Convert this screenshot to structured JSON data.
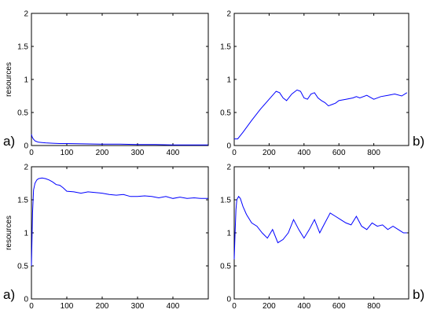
{
  "chart_data": [
    {
      "type": "line",
      "panel": "a)",
      "ylabel": "resources",
      "xlim": [
        0,
        500
      ],
      "ylim": [
        0,
        2
      ],
      "xticks": [
        0,
        100,
        200,
        300,
        400
      ],
      "yticks": [
        0,
        0.5,
        1,
        1.5,
        2
      ],
      "series_color": "#0000ff",
      "series": [
        {
          "x": [
            0,
            2,
            5,
            10,
            15,
            20,
            30,
            40,
            60,
            80,
            100,
            150,
            200,
            250,
            300,
            350,
            400,
            450,
            499
          ],
          "y": [
            0.17,
            0.13,
            0.1,
            0.07,
            0.06,
            0.05,
            0.045,
            0.04,
            0.035,
            0.03,
            0.03,
            0.025,
            0.02,
            0.02,
            0.015,
            0.015,
            0.01,
            0.01,
            0.01
          ]
        }
      ]
    },
    {
      "type": "line",
      "panel": "b)",
      "ylabel": "",
      "xlim": [
        0,
        1000
      ],
      "ylim": [
        0,
        2
      ],
      "xticks": [
        0,
        200,
        400,
        600,
        800
      ],
      "yticks": [
        0,
        0.5,
        1,
        1.5,
        2
      ],
      "series_color": "#0000ff",
      "series": [
        {
          "x": [
            0,
            20,
            50,
            100,
            150,
            200,
            240,
            260,
            280,
            300,
            330,
            360,
            380,
            400,
            420,
            440,
            460,
            480,
            500,
            520,
            540,
            560,
            580,
            600,
            640,
            680,
            700,
            720,
            760,
            800,
            840,
            880,
            920,
            960,
            990
          ],
          "y": [
            0.1,
            0.1,
            0.2,
            0.38,
            0.55,
            0.7,
            0.82,
            0.8,
            0.72,
            0.68,
            0.78,
            0.84,
            0.82,
            0.72,
            0.7,
            0.78,
            0.8,
            0.72,
            0.68,
            0.65,
            0.6,
            0.62,
            0.64,
            0.68,
            0.7,
            0.72,
            0.74,
            0.72,
            0.76,
            0.7,
            0.74,
            0.76,
            0.78,
            0.75,
            0.8
          ]
        }
      ]
    },
    {
      "type": "line",
      "panel": "a)",
      "ylabel": "resources",
      "xlim": [
        0,
        500
      ],
      "ylim": [
        0,
        2
      ],
      "xticks": [
        0,
        100,
        200,
        300,
        400
      ],
      "yticks": [
        0,
        0.5,
        1,
        1.5,
        2
      ],
      "series_color": "#0000ff",
      "series": [
        {
          "x": [
            0,
            3,
            6,
            10,
            15,
            20,
            30,
            40,
            50,
            60,
            70,
            80,
            90,
            100,
            120,
            140,
            160,
            180,
            200,
            220,
            240,
            260,
            280,
            300,
            320,
            340,
            360,
            380,
            400,
            420,
            440,
            460,
            480,
            499
          ],
          "y": [
            0.5,
            1.3,
            1.65,
            1.75,
            1.8,
            1.82,
            1.83,
            1.82,
            1.8,
            1.77,
            1.73,
            1.72,
            1.68,
            1.63,
            1.62,
            1.6,
            1.62,
            1.61,
            1.6,
            1.58,
            1.57,
            1.58,
            1.55,
            1.55,
            1.56,
            1.55,
            1.53,
            1.55,
            1.52,
            1.54,
            1.52,
            1.53,
            1.52,
            1.52
          ]
        }
      ]
    },
    {
      "type": "line",
      "panel": "b)",
      "ylabel": "",
      "xlim": [
        0,
        1000
      ],
      "ylim": [
        0,
        2
      ],
      "xticks": [
        0,
        200,
        400,
        600,
        800
      ],
      "yticks": [
        0,
        0.5,
        1,
        1.5,
        2
      ],
      "series_color": "#0000ff",
      "series": [
        {
          "x": [
            0,
            5,
            10,
            15,
            25,
            35,
            50,
            70,
            100,
            130,
            160,
            190,
            220,
            250,
            280,
            310,
            340,
            370,
            400,
            430,
            460,
            490,
            520,
            550,
            580,
            610,
            640,
            670,
            700,
            730,
            760,
            790,
            820,
            850,
            880,
            910,
            940,
            970,
            990
          ],
          "y": [
            0.6,
            1.0,
            1.35,
            1.5,
            1.55,
            1.52,
            1.4,
            1.28,
            1.15,
            1.1,
            1.0,
            0.92,
            1.05,
            0.85,
            0.9,
            1.0,
            1.2,
            1.05,
            0.92,
            1.05,
            1.2,
            1.0,
            1.15,
            1.3,
            1.25,
            1.2,
            1.15,
            1.12,
            1.25,
            1.1,
            1.05,
            1.15,
            1.1,
            1.12,
            1.05,
            1.1,
            1.05,
            1.0,
            1.0
          ]
        }
      ]
    }
  ]
}
